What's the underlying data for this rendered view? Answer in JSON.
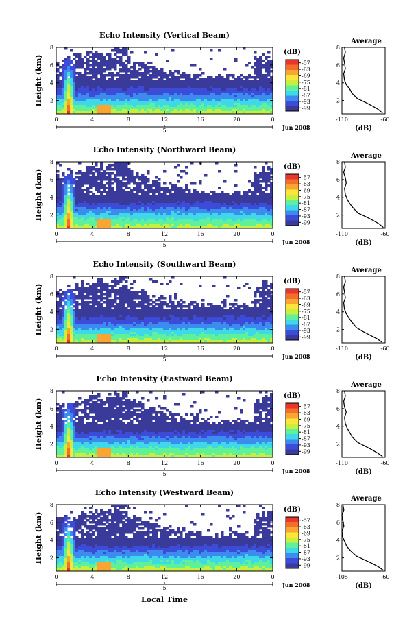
{
  "common": {
    "ylabel": "Height (km)",
    "unit": "(dB)",
    "date_label": "Jun 2008",
    "average_title": "Average",
    "average_xlabel": "(dB)",
    "bottom_xlabel": "Local Time"
  },
  "colorbar": {
    "ticks": [
      "-57",
      "-63",
      "-69",
      "-75",
      "-81",
      "-87",
      "-93",
      "-99"
    ],
    "colors": [
      "#e8372a",
      "#f46d2a",
      "#f9a532",
      "#fbe53a",
      "#c8ef3e",
      "#5ff09c",
      "#3fd8e8",
      "#3c8cf0",
      "#3c4cd8",
      "#3a3a9a"
    ]
  },
  "chart_data": [
    {
      "type": "heatmap",
      "title": "Echo Intensity (Vertical Beam)",
      "xlabel": "",
      "ylabel": "Height (km)",
      "x_ticks": [
        "0",
        "4",
        "8",
        "12",
        "16",
        "20",
        "0"
      ],
      "x_day_label": "5",
      "xlim": [
        0,
        24
      ],
      "y_ticks": [
        "2",
        "4",
        "6",
        "8"
      ],
      "ylim": [
        0.5,
        8
      ],
      "colorbar_range_dB": [
        -99,
        -57
      ],
      "average_profile": {
        "xlim": [
          -110,
          -60
        ],
        "x_ticks": [
          "-110",
          "-60"
        ],
        "y_ticks": [
          "2",
          "4",
          "6",
          "8"
        ],
        "ylim": [
          0.5,
          8
        ],
        "x": [
          -63,
          -68,
          -75,
          -83,
          -92,
          -98,
          -101,
          -105,
          -107,
          -108,
          -106,
          -107,
          -108,
          -106,
          -107
        ],
        "y": [
          0.6,
          1.0,
          1.4,
          1.8,
          2.2,
          2.8,
          3.3,
          3.8,
          4.3,
          5.0,
          5.6,
          6.2,
          6.8,
          7.4,
          8.0
        ]
      }
    },
    {
      "type": "heatmap",
      "title": "Echo Intensity (Northward Beam)",
      "xlabel": "",
      "ylabel": "Height (km)",
      "x_ticks": [
        "0",
        "4",
        "8",
        "12",
        "16",
        "20",
        "0"
      ],
      "x_day_label": "5",
      "xlim": [
        0,
        24
      ],
      "y_ticks": [
        "2",
        "4",
        "6",
        "8"
      ],
      "ylim": [
        0.5,
        8
      ],
      "colorbar_range_dB": [
        -99,
        -57
      ],
      "average_profile": {
        "xlim": [
          -110,
          -60
        ],
        "x_ticks": [
          "-110",
          "-60"
        ],
        "y_ticks": [
          "2",
          "4",
          "6",
          "8"
        ],
        "ylim": [
          0.5,
          8
        ],
        "x": [
          -62,
          -67,
          -74,
          -82,
          -91,
          -97,
          -101,
          -104,
          -106,
          -107,
          -105,
          -106,
          -108,
          -106,
          -107
        ],
        "y": [
          0.6,
          1.0,
          1.4,
          1.8,
          2.2,
          2.8,
          3.3,
          3.8,
          4.3,
          5.0,
          5.6,
          6.2,
          6.8,
          7.4,
          8.0
        ]
      }
    },
    {
      "type": "heatmap",
      "title": "Echo Intensity (Southward Beam)",
      "xlabel": "",
      "ylabel": "Height (km)",
      "x_ticks": [
        "0",
        "4",
        "8",
        "12",
        "16",
        "20",
        "0"
      ],
      "x_day_label": "5",
      "xlim": [
        0,
        24
      ],
      "y_ticks": [
        "2",
        "4",
        "6",
        "8"
      ],
      "ylim": [
        0.5,
        8
      ],
      "colorbar_range_dB": [
        -99,
        -57
      ],
      "average_profile": {
        "xlim": [
          -110,
          -60
        ],
        "x_ticks": [
          "-110",
          "-60"
        ],
        "y_ticks": [
          "2",
          "4",
          "6",
          "8"
        ],
        "ylim": [
          0.5,
          8
        ],
        "x": [
          -64,
          -70,
          -78,
          -86,
          -93,
          -98,
          -102,
          -105,
          -107,
          -108,
          -106,
          -107,
          -108,
          -106,
          -107
        ],
        "y": [
          0.6,
          1.0,
          1.4,
          1.8,
          2.2,
          2.8,
          3.3,
          3.8,
          4.3,
          5.0,
          5.6,
          6.2,
          6.8,
          7.4,
          8.0
        ]
      }
    },
    {
      "type": "heatmap",
      "title": "Echo Intensity (Eastward Beam)",
      "xlabel": "",
      "ylabel": "Height (km)",
      "x_ticks": [
        "0",
        "4",
        "8",
        "12",
        "16",
        "20",
        "0"
      ],
      "x_day_label": "5",
      "xlim": [
        0,
        24
      ],
      "y_ticks": [
        "2",
        "4",
        "6",
        "8"
      ],
      "ylim": [
        0.5,
        8
      ],
      "colorbar_range_dB": [
        -99,
        -57
      ],
      "average_profile": {
        "xlim": [
          -110,
          -60
        ],
        "x_ticks": [
          "-110",
          "-60"
        ],
        "y_ticks": [
          "2",
          "4",
          "6",
          "8"
        ],
        "ylim": [
          0.5,
          8
        ],
        "x": [
          -63,
          -69,
          -76,
          -84,
          -92,
          -98,
          -101,
          -104,
          -106,
          -107,
          -105,
          -107,
          -108,
          -106,
          -107
        ],
        "y": [
          0.6,
          1.0,
          1.4,
          1.8,
          2.2,
          2.8,
          3.3,
          3.8,
          4.3,
          5.0,
          5.6,
          6.2,
          6.8,
          7.4,
          8.0
        ]
      }
    },
    {
      "type": "heatmap",
      "title": "Echo Intensity (Westward Beam)",
      "xlabel": "Local Time",
      "ylabel": "Height (km)",
      "x_ticks": [
        "0",
        "4",
        "8",
        "12",
        "16",
        "20",
        "0"
      ],
      "x_day_label": "5",
      "xlim": [
        0,
        24
      ],
      "y_ticks": [
        "2",
        "4",
        "6",
        "8"
      ],
      "ylim": [
        0.5,
        8
      ],
      "colorbar_range_dB": [
        -99,
        -57
      ],
      "average_profile": {
        "xlim": [
          -105,
          -60
        ],
        "x_ticks": [
          "-105",
          "-60"
        ],
        "y_ticks": [
          "2",
          "4",
          "6",
          "8"
        ],
        "ylim": [
          0.5,
          8
        ],
        "x": [
          -62,
          -67,
          -74,
          -82,
          -90,
          -96,
          -100,
          -102,
          -104,
          -105,
          -103,
          -104,
          -105,
          -103,
          -104
        ],
        "y": [
          0.6,
          1.0,
          1.4,
          1.8,
          2.2,
          2.8,
          3.3,
          3.8,
          4.3,
          5.0,
          5.6,
          6.2,
          6.8,
          7.4,
          8.0
        ]
      }
    }
  ]
}
